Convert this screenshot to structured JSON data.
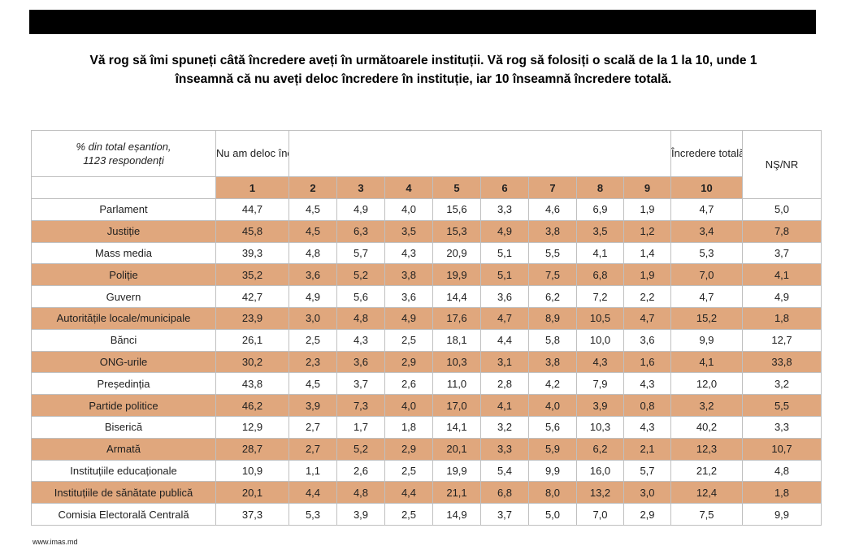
{
  "page": {
    "title_line1": "Vă rog să îmi spuneți câtă încredere aveți în următoarele instituții. Vă rog să folosiți o scală de la 1 la 10, unde 1",
    "title_line2": "înseamnă că nu aveți deloc încredere în instituție, iar 10 înseamnă încredere totală.",
    "footer_website": "www.imas.md"
  },
  "colors": {
    "banner": "#000000",
    "row_stripe": "#e0a77d",
    "table_border": "#bfbfbf",
    "text": "#1f1f1f"
  },
  "table": {
    "caption_line1": "% din total eșantion,",
    "caption_line2": "1123 respondenți",
    "header": {
      "no_trust_label": "Nu am deloc încredere",
      "total_trust_label": "Încredere totală",
      "nsnr_label": "NŞ/NR",
      "scale": [
        "1",
        "2",
        "3",
        "4",
        "5",
        "6",
        "7",
        "8",
        "9",
        "10"
      ]
    },
    "rows": [
      {
        "label": "Parlament",
        "values": [
          "44,7",
          "4,5",
          "4,9",
          "4,0",
          "15,6",
          "3,3",
          "4,6",
          "6,9",
          "1,9",
          "4,7"
        ],
        "nsnr": "5,0"
      },
      {
        "label": "Justiție",
        "values": [
          "45,8",
          "4,5",
          "6,3",
          "3,5",
          "15,3",
          "4,9",
          "3,8",
          "3,5",
          "1,2",
          "3,4"
        ],
        "nsnr": "7,8"
      },
      {
        "label": "Mass media",
        "values": [
          "39,3",
          "4,8",
          "5,7",
          "4,3",
          "20,9",
          "5,1",
          "5,5",
          "4,1",
          "1,4",
          "5,3"
        ],
        "nsnr": "3,7"
      },
      {
        "label": "Poliție",
        "values": [
          "35,2",
          "3,6",
          "5,2",
          "3,8",
          "19,9",
          "5,1",
          "7,5",
          "6,8",
          "1,9",
          "7,0"
        ],
        "nsnr": "4,1"
      },
      {
        "label": "Guvern",
        "values": [
          "42,7",
          "4,9",
          "5,6",
          "3,6",
          "14,4",
          "3,6",
          "6,2",
          "7,2",
          "2,2",
          "4,7"
        ],
        "nsnr": "4,9"
      },
      {
        "label": "Autoritățile locale/municipale",
        "values": [
          "23,9",
          "3,0",
          "4,8",
          "4,9",
          "17,6",
          "4,7",
          "8,9",
          "10,5",
          "4,7",
          "15,2"
        ],
        "nsnr": "1,8"
      },
      {
        "label": "Bănci",
        "values": [
          "26,1",
          "2,5",
          "4,3",
          "2,5",
          "18,1",
          "4,4",
          "5,8",
          "10,0",
          "3,6",
          "9,9"
        ],
        "nsnr": "12,7"
      },
      {
        "label": "ONG-urile",
        "values": [
          "30,2",
          "2,3",
          "3,6",
          "2,9",
          "10,3",
          "3,1",
          "3,8",
          "4,3",
          "1,6",
          "4,1"
        ],
        "nsnr": "33,8"
      },
      {
        "label": "Președinția",
        "values": [
          "43,8",
          "4,5",
          "3,7",
          "2,6",
          "11,0",
          "2,8",
          "4,2",
          "7,9",
          "4,3",
          "12,0"
        ],
        "nsnr": "3,2"
      },
      {
        "label": "Partide politice",
        "values": [
          "46,2",
          "3,9",
          "7,3",
          "4,0",
          "17,0",
          "4,1",
          "4,0",
          "3,9",
          "0,8",
          "3,2"
        ],
        "nsnr": "5,5"
      },
      {
        "label": "Biserică",
        "values": [
          "12,9",
          "2,7",
          "1,7",
          "1,8",
          "14,1",
          "3,2",
          "5,6",
          "10,3",
          "4,3",
          "40,2"
        ],
        "nsnr": "3,3"
      },
      {
        "label": "Armată",
        "values": [
          "28,7",
          "2,7",
          "5,2",
          "2,9",
          "20,1",
          "3,3",
          "5,9",
          "6,2",
          "2,1",
          "12,3"
        ],
        "nsnr": "10,7"
      },
      {
        "label": "Instituțiile educaționale",
        "values": [
          "10,9",
          "1,1",
          "2,6",
          "2,5",
          "19,9",
          "5,4",
          "9,9",
          "16,0",
          "5,7",
          "21,2"
        ],
        "nsnr": "4,8"
      },
      {
        "label": "Instituțiile de sănătate publică",
        "values": [
          "20,1",
          "4,4",
          "4,8",
          "4,4",
          "21,1",
          "6,8",
          "8,0",
          "13,2",
          "3,0",
          "12,4"
        ],
        "nsnr": "1,8"
      },
      {
        "label": "Comisia Electorală Centrală",
        "values": [
          "37,3",
          "5,3",
          "3,9",
          "2,5",
          "14,9",
          "3,7",
          "5,0",
          "7,0",
          "2,9",
          "7,5"
        ],
        "nsnr": "9,9"
      }
    ]
  }
}
